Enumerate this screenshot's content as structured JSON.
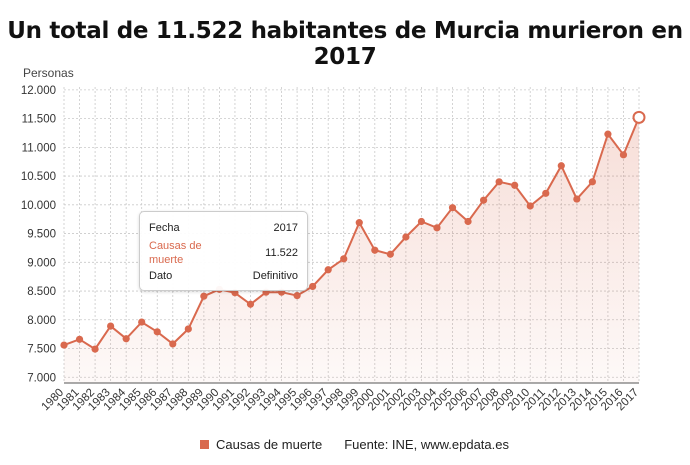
{
  "header": {
    "title": "Un total de 11.522 habitantes de Murcia murieron en 2017"
  },
  "chart_data": {
    "type": "area",
    "title": "Un total de 11.522 habitantes de Murcia murieron en 2017",
    "ylabel": "Personas",
    "xlabel": "",
    "ylim": [
      6900,
      12050
    ],
    "yticks": [
      7000,
      7500,
      8000,
      8500,
      9000,
      9500,
      10000,
      10500,
      11000,
      11500,
      12000
    ],
    "ytick_labels": [
      "7.000",
      "7.500",
      "8.000",
      "8.500",
      "9.000",
      "9.500",
      "10.000",
      "10.500",
      "11.000",
      "11.500",
      "12.000"
    ],
    "x": [
      "1980",
      "1981",
      "1982",
      "1983",
      "1984",
      "1985",
      "1986",
      "1987",
      "1988",
      "1989",
      "1990",
      "1991",
      "1992",
      "1993",
      "1994",
      "1995",
      "1996",
      "1997",
      "1998",
      "1999",
      "2000",
      "2001",
      "2002",
      "2003",
      "2004",
      "2005",
      "2006",
      "2007",
      "2008",
      "2009",
      "2010",
      "2011",
      "2012",
      "2013",
      "2014",
      "2015",
      "2016",
      "2017"
    ],
    "series": [
      {
        "name": "Causas de muerte",
        "color": "#d9694e",
        "values": [
          7560,
          7660,
          7490,
          7890,
          7670,
          7960,
          7790,
          7580,
          7840,
          8410,
          8530,
          8470,
          8270,
          8480,
          8480,
          8420,
          8580,
          8870,
          9060,
          9690,
          9210,
          9140,
          9440,
          9710,
          9600,
          9950,
          9710,
          10080,
          10400,
          10340,
          9980,
          10200,
          10680,
          10100,
          10400,
          11230,
          10870,
          11522
        ]
      }
    ],
    "grid": true,
    "legend": "bottom-center",
    "highlight": {
      "category": "2017",
      "value": 11522
    }
  },
  "tooltip": {
    "row1_label": "Fecha",
    "row1_value": "2017",
    "row2_label": "Causas de muerte",
    "row2_value": "11.522",
    "row3_label": "Dato",
    "row3_value": "Definitivo"
  },
  "legend": {
    "series_label": "Causas de muerte",
    "source": "Fuente: INE, www.epdata.es"
  }
}
